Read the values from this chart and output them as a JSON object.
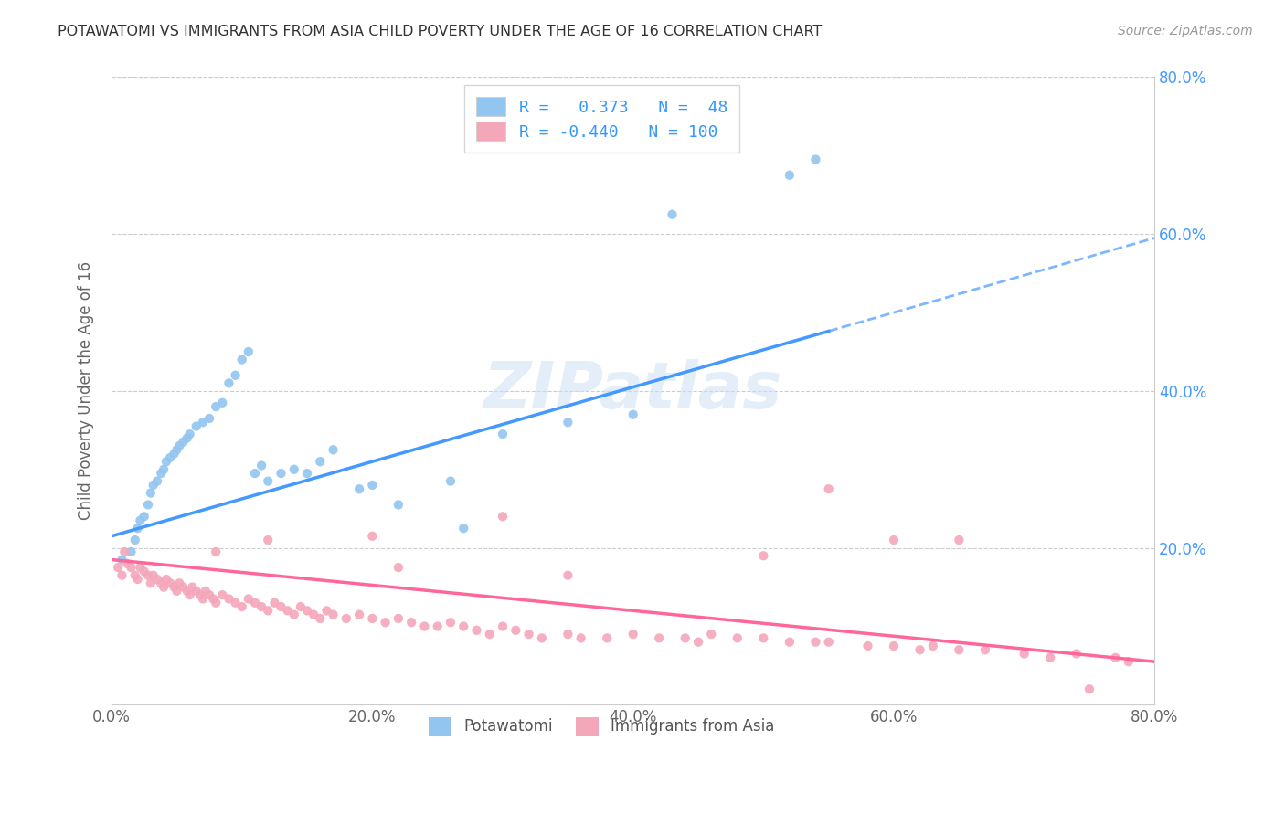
{
  "title": "POTAWATOMI VS IMMIGRANTS FROM ASIA CHILD POVERTY UNDER THE AGE OF 16 CORRELATION CHART",
  "source": "Source: ZipAtlas.com",
  "ylabel": "Child Poverty Under the Age of 16",
  "xlim": [
    0.0,
    0.8
  ],
  "ylim": [
    0.0,
    0.8
  ],
  "xtick_labels": [
    "0.0%",
    "20.0%",
    "40.0%",
    "60.0%",
    "80.0%"
  ],
  "xtick_vals": [
    0.0,
    0.2,
    0.4,
    0.6,
    0.8
  ],
  "ytick_vals": [
    0.2,
    0.4,
    0.6,
    0.8
  ],
  "right_ytick_labels": [
    "20.0%",
    "40.0%",
    "60.0%",
    "80.0%"
  ],
  "right_ytick_vals": [
    0.2,
    0.4,
    0.6,
    0.8
  ],
  "color_blue": "#92C5F0",
  "color_pink": "#F4A7B9",
  "color_blue_line": "#4499FF",
  "color_pink_line": "#FF6699",
  "watermark": "ZIPatlas",
  "blue_line_x0": 0.0,
  "blue_line_y0": 0.215,
  "blue_line_x1": 0.8,
  "blue_line_y1": 0.595,
  "blue_line_solid_x1": 0.55,
  "pink_line_x0": 0.0,
  "pink_line_y0": 0.185,
  "pink_line_x1": 0.8,
  "pink_line_y1": 0.055,
  "blue_scatter_x": [
    0.008,
    0.015,
    0.018,
    0.02,
    0.022,
    0.025,
    0.028,
    0.03,
    0.032,
    0.035,
    0.038,
    0.04,
    0.042,
    0.045,
    0.048,
    0.05,
    0.052,
    0.055,
    0.058,
    0.06,
    0.065,
    0.07,
    0.075,
    0.08,
    0.085,
    0.09,
    0.095,
    0.1,
    0.105,
    0.11,
    0.115,
    0.12,
    0.13,
    0.14,
    0.15,
    0.16,
    0.17,
    0.19,
    0.2,
    0.22,
    0.26,
    0.27,
    0.3,
    0.35,
    0.4,
    0.43,
    0.52,
    0.54
  ],
  "blue_scatter_y": [
    0.185,
    0.195,
    0.21,
    0.225,
    0.235,
    0.24,
    0.255,
    0.27,
    0.28,
    0.285,
    0.295,
    0.3,
    0.31,
    0.315,
    0.32,
    0.325,
    0.33,
    0.335,
    0.34,
    0.345,
    0.355,
    0.36,
    0.365,
    0.38,
    0.385,
    0.41,
    0.42,
    0.44,
    0.45,
    0.295,
    0.305,
    0.285,
    0.295,
    0.3,
    0.295,
    0.31,
    0.325,
    0.275,
    0.28,
    0.255,
    0.285,
    0.225,
    0.345,
    0.36,
    0.37,
    0.625,
    0.675,
    0.695
  ],
  "pink_scatter_x": [
    0.005,
    0.008,
    0.01,
    0.012,
    0.015,
    0.018,
    0.02,
    0.022,
    0.025,
    0.028,
    0.03,
    0.032,
    0.035,
    0.038,
    0.04,
    0.042,
    0.045,
    0.048,
    0.05,
    0.052,
    0.055,
    0.058,
    0.06,
    0.062,
    0.065,
    0.068,
    0.07,
    0.072,
    0.075,
    0.078,
    0.08,
    0.085,
    0.09,
    0.095,
    0.1,
    0.105,
    0.11,
    0.115,
    0.12,
    0.125,
    0.13,
    0.135,
    0.14,
    0.145,
    0.15,
    0.155,
    0.16,
    0.165,
    0.17,
    0.18,
    0.19,
    0.2,
    0.21,
    0.22,
    0.23,
    0.24,
    0.25,
    0.26,
    0.27,
    0.28,
    0.29,
    0.3,
    0.31,
    0.32,
    0.33,
    0.35,
    0.36,
    0.38,
    0.4,
    0.42,
    0.44,
    0.45,
    0.46,
    0.48,
    0.5,
    0.52,
    0.54,
    0.55,
    0.58,
    0.6,
    0.62,
    0.63,
    0.65,
    0.67,
    0.7,
    0.72,
    0.74,
    0.75,
    0.77,
    0.78,
    0.08,
    0.12,
    0.55,
    0.5,
    0.6,
    0.22,
    0.3,
    0.35,
    0.65,
    0.2
  ],
  "pink_scatter_y": [
    0.175,
    0.165,
    0.195,
    0.18,
    0.175,
    0.165,
    0.16,
    0.175,
    0.17,
    0.165,
    0.155,
    0.165,
    0.16,
    0.155,
    0.15,
    0.16,
    0.155,
    0.15,
    0.145,
    0.155,
    0.15,
    0.145,
    0.14,
    0.15,
    0.145,
    0.14,
    0.135,
    0.145,
    0.14,
    0.135,
    0.13,
    0.14,
    0.135,
    0.13,
    0.125,
    0.135,
    0.13,
    0.125,
    0.12,
    0.13,
    0.125,
    0.12,
    0.115,
    0.125,
    0.12,
    0.115,
    0.11,
    0.12,
    0.115,
    0.11,
    0.115,
    0.11,
    0.105,
    0.11,
    0.105,
    0.1,
    0.1,
    0.105,
    0.1,
    0.095,
    0.09,
    0.1,
    0.095,
    0.09,
    0.085,
    0.09,
    0.085,
    0.085,
    0.09,
    0.085,
    0.085,
    0.08,
    0.09,
    0.085,
    0.085,
    0.08,
    0.08,
    0.08,
    0.075,
    0.075,
    0.07,
    0.075,
    0.07,
    0.07,
    0.065,
    0.06,
    0.065,
    0.02,
    0.06,
    0.055,
    0.195,
    0.21,
    0.275,
    0.19,
    0.21,
    0.175,
    0.24,
    0.165,
    0.21,
    0.215
  ]
}
